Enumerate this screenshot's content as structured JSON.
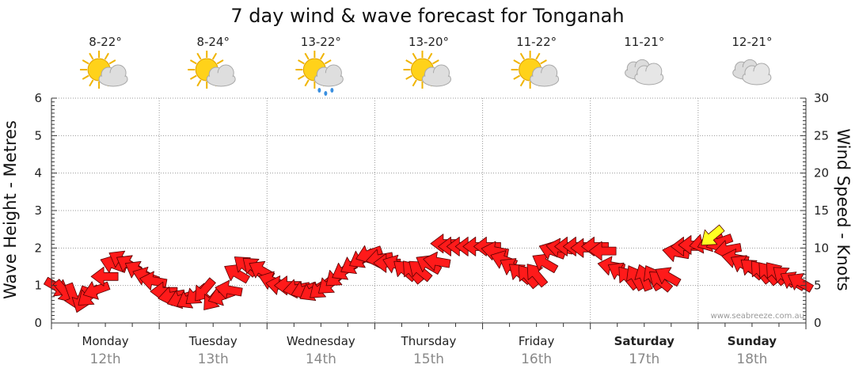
{
  "title": "7 day wind & wave forecast for Tonganah",
  "credit": "www.seabreeze.com.au",
  "colors": {
    "arrow": "#ff1a1a",
    "arrow_stroke": "#550000",
    "current_arrow": "#ffff22",
    "grid": "#999999"
  },
  "days": [
    {
      "name": "Monday",
      "date": "12th",
      "temp": "8-22°",
      "icon": "sun-cloud-icon",
      "bold": false
    },
    {
      "name": "Tuesday",
      "date": "13th",
      "temp": "8-24°",
      "icon": "sun-cloud-icon",
      "bold": false
    },
    {
      "name": "Wednesday",
      "date": "14th",
      "temp": "13-22°",
      "icon": "sun-cloud-rain-icon",
      "bold": false
    },
    {
      "name": "Thursday",
      "date": "15th",
      "temp": "13-20°",
      "icon": "sun-cloud-icon",
      "bold": false
    },
    {
      "name": "Friday",
      "date": "16th",
      "temp": "11-22°",
      "icon": "sun-cloud-icon",
      "bold": false
    },
    {
      "name": "Saturday",
      "date": "17th",
      "temp": "11-21°",
      "icon": "cloud-icon",
      "bold": true
    },
    {
      "name": "Sunday",
      "date": "18th",
      "temp": "12-21°",
      "icon": "cloud-icon",
      "bold": true
    }
  ],
  "chart_data": {
    "type": "scatter",
    "title": "7 day wind & wave forecast for Tonganah",
    "ylabel": "Wave Height - Metres",
    "y2label": "Wind Speed - Knots",
    "ylim": [
      0,
      6
    ],
    "y2lim": [
      0,
      30
    ],
    "yticks": [
      "0",
      "1",
      "2",
      "3",
      "4",
      "5",
      "6"
    ],
    "y2ticks": [
      "0",
      "5",
      "10",
      "15",
      "20",
      "25",
      "30"
    ],
    "grid": true,
    "x_unit": "day index (0 = Monday 00:00)",
    "wind": {
      "x": [
        0.05,
        0.12,
        0.2,
        0.28,
        0.35,
        0.42,
        0.5,
        0.58,
        0.65,
        0.72,
        0.8,
        0.88,
        0.95,
        1.05,
        1.12,
        1.2,
        1.28,
        1.35,
        1.42,
        1.5,
        1.58,
        1.65,
        1.72,
        1.8,
        1.88,
        1.95,
        2.05,
        2.12,
        2.2,
        2.28,
        2.35,
        2.42,
        2.5,
        2.58,
        2.65,
        2.72,
        2.8,
        2.88,
        2.95,
        3.05,
        3.12,
        3.2,
        3.28,
        3.35,
        3.42,
        3.5,
        3.58,
        3.65,
        3.72,
        3.8,
        3.88,
        3.95,
        4.05,
        4.12,
        4.2,
        4.28,
        4.35,
        4.42,
        4.5,
        4.58,
        4.65,
        4.72,
        4.8,
        4.88,
        4.95,
        5.05,
        5.12,
        5.2,
        5.28,
        5.35,
        5.42,
        5.5,
        5.58,
        5.65,
        5.72,
        5.8,
        5.88,
        5.95,
        6.05,
        6.12,
        6.2,
        6.28,
        6.35,
        6.42,
        6.5,
        6.58,
        6.65,
        6.72,
        6.8,
        6.88,
        6.95
      ],
      "speed_kn": [
        4.8,
        4.2,
        3.6,
        3.2,
        3.6,
        4.4,
        6.2,
        7.8,
        8.4,
        7.8,
        7.0,
        6.2,
        5.6,
        4.2,
        3.6,
        3.2,
        3.2,
        3.8,
        4.4,
        3.2,
        3.6,
        4.4,
        6.6,
        7.6,
        7.4,
        7.0,
        5.6,
        5.0,
        5.0,
        4.6,
        4.4,
        4.2,
        4.6,
        5.2,
        6.2,
        7.0,
        7.8,
        8.6,
        9.2,
        8.6,
        8.0,
        7.8,
        7.0,
        6.8,
        7.0,
        7.8,
        8.2,
        10.6,
        10.2,
        10.2,
        10.2,
        10.2,
        10.2,
        9.6,
        8.4,
        7.4,
        6.6,
        6.2,
        6.4,
        8.0,
        9.6,
        10.0,
        10.2,
        10.2,
        10.0,
        10.2,
        9.6,
        7.6,
        6.8,
        6.0,
        6.0,
        6.0,
        6.0,
        5.6,
        6.2,
        9.4,
        10.2,
        10.4,
        10.6,
        10.8,
        10.8,
        9.8,
        8.6,
        7.8,
        7.2,
        6.8,
        6.6,
        6.6,
        6.2,
        5.6,
        5.4
      ],
      "direction_deg": [
        120,
        140,
        160,
        200,
        230,
        250,
        270,
        290,
        300,
        300,
        300,
        290,
        280,
        270,
        260,
        250,
        240,
        230,
        220,
        220,
        250,
        280,
        300,
        310,
        310,
        300,
        290,
        280,
        270,
        260,
        250,
        240,
        230,
        230,
        230,
        240,
        240,
        240,
        250,
        260,
        270,
        290,
        310,
        320,
        310,
        300,
        280,
        270,
        270,
        270,
        270,
        270,
        270,
        280,
        290,
        300,
        310,
        320,
        320,
        300,
        290,
        280,
        270,
        270,
        270,
        270,
        270,
        280,
        300,
        320,
        330,
        340,
        330,
        310,
        300,
        280,
        270,
        270,
        260,
        250,
        250,
        260,
        280,
        300,
        310,
        320,
        320,
        320,
        310,
        300,
        300
      ],
      "current": {
        "x": 6.13,
        "speed_kn": 11.6,
        "direction_deg": 230
      }
    }
  }
}
